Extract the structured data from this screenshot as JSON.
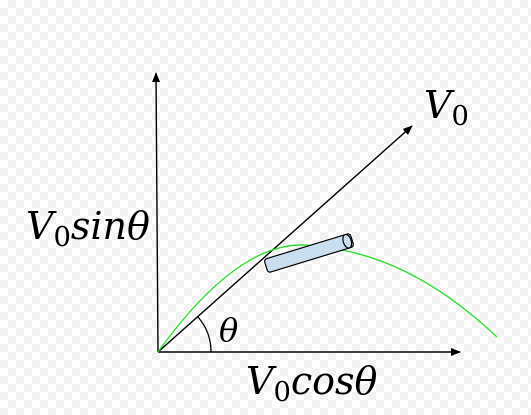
{
  "labels": {
    "velocity": {
      "main": "V",
      "sub": "0",
      "tail": ""
    },
    "vertical_component": {
      "main": "V",
      "sub": "0",
      "tail": "sinθ"
    },
    "horizontal_component": {
      "main": "V",
      "sub": "0",
      "tail": "cosθ"
    },
    "angle": "θ"
  },
  "colors": {
    "axes": "#000000",
    "velocity_vector": "#000000",
    "trajectory": "#22dd22",
    "object_fill": "#c9dff0",
    "object_stroke": "#000000"
  }
}
